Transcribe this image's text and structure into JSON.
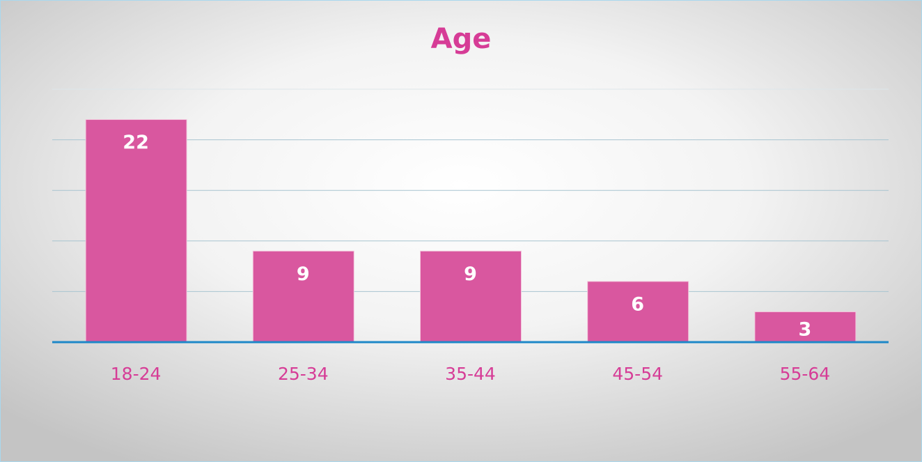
{
  "chart_data": {
    "type": "bar",
    "title": "Age",
    "categories": [
      "18-24",
      "25-34",
      "35-44",
      "45-54",
      "55-64"
    ],
    "values": [
      22,
      9,
      9,
      6,
      3
    ],
    "color": "#d9579f",
    "ylim": [
      0,
      25
    ],
    "yticks": [
      0,
      5,
      10,
      15,
      20,
      25
    ],
    "grid": true
  }
}
